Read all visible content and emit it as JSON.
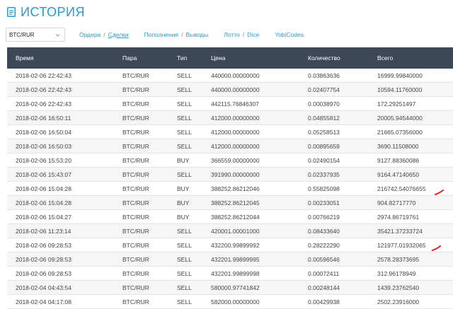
{
  "header": {
    "title": "ИСТОРИЯ",
    "icon": "document-icon"
  },
  "toolbar": {
    "pair_select": "BTC/RUR",
    "nav": {
      "orders": "Ордера",
      "trades": "Сделки",
      "deposits": "Пополнения",
      "withdrawals": "Выводы",
      "lotto": "Лотто",
      "dice": "Dice",
      "yobicodes": "YobiCodes"
    }
  },
  "table": {
    "headers": [
      "Время",
      "Пара",
      "Тип",
      "Цена",
      "Количество",
      "Всего"
    ],
    "rows": [
      [
        "2018-02-06 22:42:43",
        "BTC/RUR",
        "SELL",
        "440000.00000000",
        "0.03863636",
        "16999.99840000"
      ],
      [
        "2018-02-06 22:42:43",
        "BTC/RUR",
        "SELL",
        "440000.00000000",
        "0.02407754",
        "10594.11760000"
      ],
      [
        "2018-02-06 22:42:43",
        "BTC/RUR",
        "SELL",
        "442115.76846307",
        "0.00038970",
        "172.29251497"
      ],
      [
        "2018-02-06 16:50:11",
        "BTC/RUR",
        "SELL",
        "412000.00000000",
        "0.04855812",
        "20005.94544000"
      ],
      [
        "2018-02-06 16:50:04",
        "BTC/RUR",
        "SELL",
        "412000.00000000",
        "0.05258513",
        "21665.07356000"
      ],
      [
        "2018-02-06 16:50:03",
        "BTC/RUR",
        "SELL",
        "412000.00000000",
        "0.00895659",
        "3690.11508000"
      ],
      [
        "2018-02-06 15:53:20",
        "BTC/RUR",
        "BUY",
        "366559.00000000",
        "0.02490154",
        "9127.88360086"
      ],
      [
        "2018-02-06 15:43:07",
        "BTC/RUR",
        "SELL",
        "391990.00000000",
        "0.02337935",
        "9164.47140650"
      ],
      [
        "2018-02-06 15:04:28",
        "BTC/RUR",
        "BUY",
        "388252.86212046",
        "0.55825098",
        "216742.54076655"
      ],
      [
        "2018-02-06 15:04:28",
        "BTC/RUR",
        "BUY",
        "388252.86212045",
        "0.00233051",
        "904.82717770"
      ],
      [
        "2018-02-06 15:04:27",
        "BTC/RUR",
        "BUY",
        "388252.86212044",
        "0.00766219",
        "2974.86719761"
      ],
      [
        "2018-02-06 11:23:14",
        "BTC/RUR",
        "SELL",
        "420001.00001000",
        "0.08433640",
        "35421.37233724"
      ],
      [
        "2018-02-06 09:28:53",
        "BTC/RUR",
        "SELL",
        "432200.99899992",
        "0.28222290",
        "121977.01932065"
      ],
      [
        "2018-02-06 09:28:53",
        "BTC/RUR",
        "SELL",
        "432201.99899995",
        "0.00596546",
        "2578.28373695"
      ],
      [
        "2018-02-06 09:28:53",
        "BTC/RUR",
        "SELL",
        "432201.99899998",
        "0.00072411",
        "312.96178949"
      ],
      [
        "2018-02-04 04:43:54",
        "BTC/RUR",
        "SELL",
        "580000.97741842",
        "0.00248144",
        "1439.23762540"
      ],
      [
        "2018-02-04 04:17:08",
        "BTC/RUR",
        "SELL",
        "582000.00000000",
        "0.00429938",
        "2502.23916000"
      ]
    ]
  },
  "colors": {
    "accent": "#2a9bd3",
    "header_bg": "#3c4858",
    "sell": "#d9322c",
    "buy": "#3aa33a",
    "annotation": "#e0202a"
  }
}
